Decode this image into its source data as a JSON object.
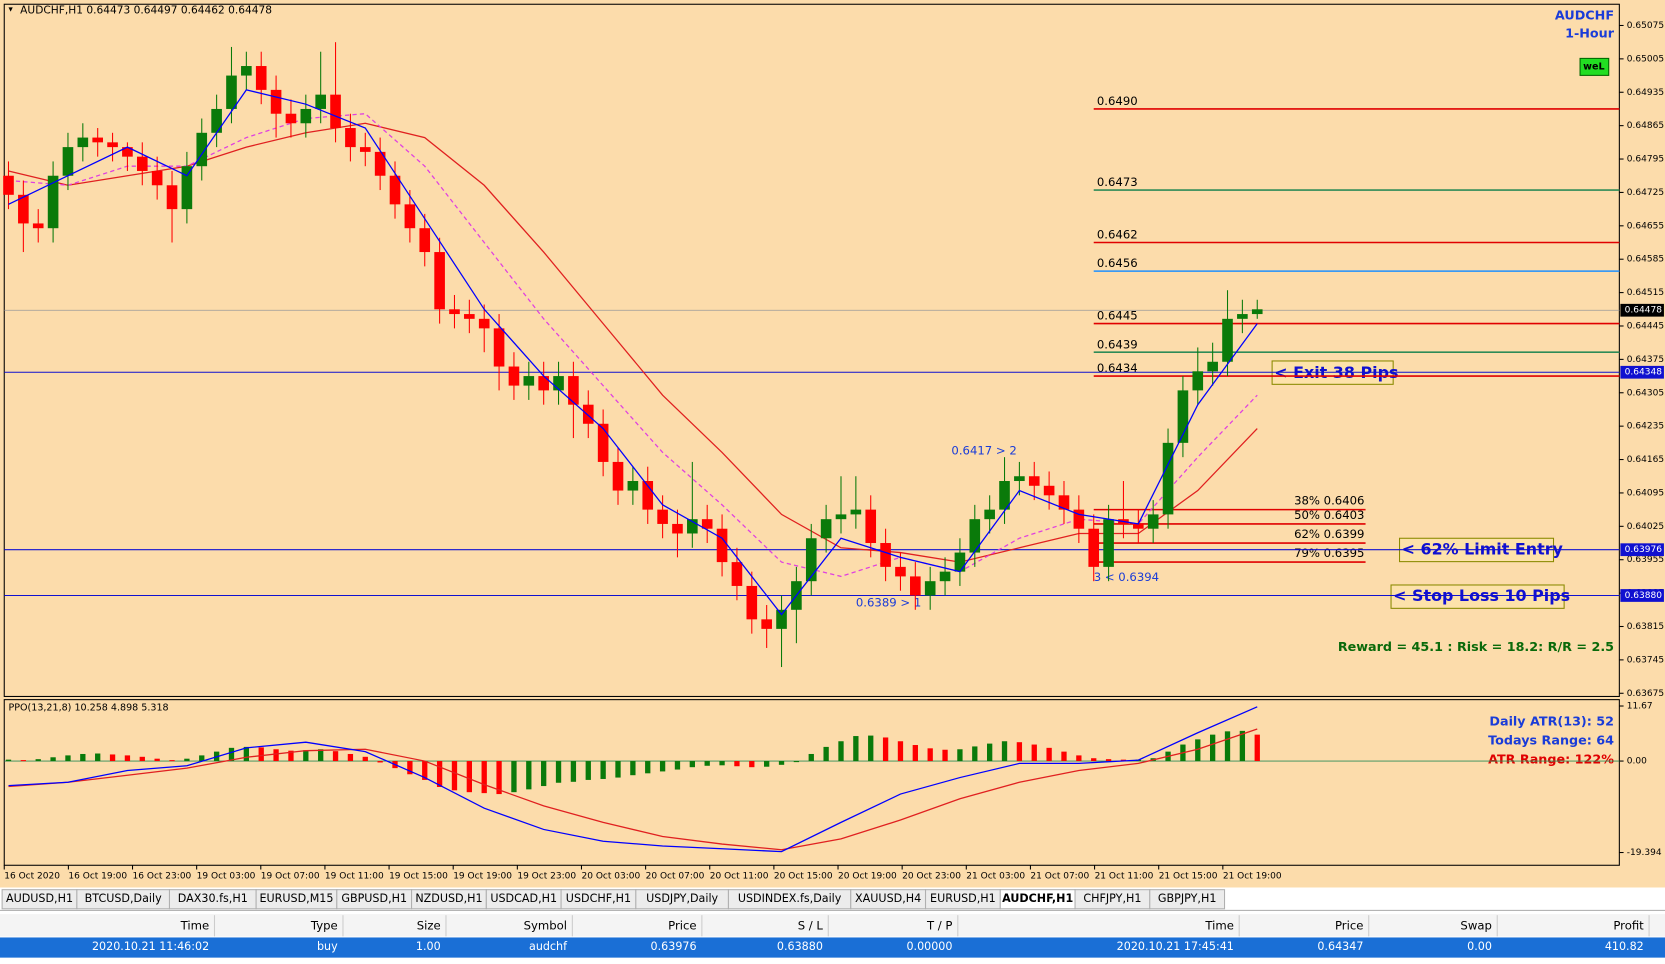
{
  "header": {
    "symbol_info": "AUDCHF,H1  0.64473 0.64497 0.64462 0.64478",
    "symbol": "AUDCHF",
    "timeframe": "1-Hour",
    "badge": "weL"
  },
  "price_chart": {
    "type": "candlestick",
    "bull_color": "#0a7a0a",
    "bear_color": "#ff0000",
    "background": "#fcdcab",
    "ylim": [
      0.63675,
      0.65075
    ],
    "yticks": [
      0.65075,
      0.65005,
      0.64935,
      0.64865,
      0.64795,
      0.64725,
      0.64655,
      0.64585,
      0.64515,
      0.64445,
      0.64375,
      0.64305,
      0.64235,
      0.64165,
      0.64095,
      0.64025,
      0.63955,
      0.63885,
      0.63815,
      0.63745,
      0.63675
    ],
    "candles": [
      [
        0.6476,
        0.6479,
        0.6469,
        0.6472
      ],
      [
        0.6472,
        0.6475,
        0.646,
        0.6466
      ],
      [
        0.6466,
        0.6469,
        0.6462,
        0.6465
      ],
      [
        0.6465,
        0.6479,
        0.6462,
        0.6476
      ],
      [
        0.6476,
        0.6485,
        0.6473,
        0.6482
      ],
      [
        0.6482,
        0.6487,
        0.6479,
        0.6484
      ],
      [
        0.6484,
        0.6486,
        0.648,
        0.6483
      ],
      [
        0.6483,
        0.6485,
        0.6479,
        0.6482
      ],
      [
        0.6482,
        0.6483,
        0.6477,
        0.648
      ],
      [
        0.648,
        0.6483,
        0.6474,
        0.6477
      ],
      [
        0.6477,
        0.648,
        0.6471,
        0.6474
      ],
      [
        0.6474,
        0.6477,
        0.6462,
        0.6469
      ],
      [
        0.6469,
        0.6481,
        0.6466,
        0.6478
      ],
      [
        0.6478,
        0.6488,
        0.6475,
        0.6485
      ],
      [
        0.6485,
        0.6493,
        0.6482,
        0.649
      ],
      [
        0.649,
        0.6503,
        0.6487,
        0.6497
      ],
      [
        0.6497,
        0.6502,
        0.6494,
        0.6499
      ],
      [
        0.6499,
        0.6502,
        0.6491,
        0.6494
      ],
      [
        0.6494,
        0.6497,
        0.6484,
        0.6489
      ],
      [
        0.6489,
        0.6492,
        0.6484,
        0.6487
      ],
      [
        0.6487,
        0.6493,
        0.6484,
        0.649
      ],
      [
        0.649,
        0.6502,
        0.6487,
        0.6493
      ],
      [
        0.6493,
        0.6504,
        0.6483,
        0.6486
      ],
      [
        0.6486,
        0.6489,
        0.6479,
        0.6482
      ],
      [
        0.6482,
        0.6485,
        0.6478,
        0.6481
      ],
      [
        0.6481,
        0.6484,
        0.6473,
        0.6476
      ],
      [
        0.6476,
        0.6479,
        0.6467,
        0.647
      ],
      [
        0.647,
        0.6473,
        0.6462,
        0.6465
      ],
      [
        0.6465,
        0.6468,
        0.6457,
        0.646
      ],
      [
        0.646,
        0.6463,
        0.6445,
        0.6448
      ],
      [
        0.6448,
        0.6451,
        0.6444,
        0.6447
      ],
      [
        0.6447,
        0.645,
        0.6443,
        0.6446
      ],
      [
        0.6446,
        0.6449,
        0.6439,
        0.6444
      ],
      [
        0.6444,
        0.6447,
        0.6431,
        0.6436
      ],
      [
        0.6436,
        0.6439,
        0.6429,
        0.6432
      ],
      [
        0.6432,
        0.6437,
        0.6429,
        0.6434
      ],
      [
        0.6434,
        0.6437,
        0.6428,
        0.6431
      ],
      [
        0.6431,
        0.6437,
        0.6428,
        0.6434
      ],
      [
        0.6434,
        0.6437,
        0.6421,
        0.6428
      ],
      [
        0.6428,
        0.6431,
        0.6421,
        0.6424
      ],
      [
        0.6424,
        0.6427,
        0.6413,
        0.6416
      ],
      [
        0.6416,
        0.6419,
        0.6407,
        0.641
      ],
      [
        0.641,
        0.6415,
        0.6407,
        0.6412
      ],
      [
        0.6412,
        0.6415,
        0.6403,
        0.6406
      ],
      [
        0.6406,
        0.6409,
        0.64,
        0.6403
      ],
      [
        0.6403,
        0.6406,
        0.6396,
        0.6401
      ],
      [
        0.6401,
        0.6416,
        0.6398,
        0.6404
      ],
      [
        0.6404,
        0.6407,
        0.6399,
        0.6402
      ],
      [
        0.6402,
        0.6405,
        0.6392,
        0.6395
      ],
      [
        0.6395,
        0.6398,
        0.6387,
        0.639
      ],
      [
        0.639,
        0.6393,
        0.638,
        0.6383
      ],
      [
        0.6383,
        0.6386,
        0.6377,
        0.6381
      ],
      [
        0.6381,
        0.6388,
        0.6373,
        0.6385
      ],
      [
        0.6385,
        0.6394,
        0.6378,
        0.6391
      ],
      [
        0.6391,
        0.6403,
        0.6388,
        0.64
      ],
      [
        0.64,
        0.6407,
        0.6397,
        0.6404
      ],
      [
        0.6404,
        0.6413,
        0.6401,
        0.6405
      ],
      [
        0.6405,
        0.6413,
        0.6402,
        0.6406
      ],
      [
        0.6406,
        0.6409,
        0.6396,
        0.6399
      ],
      [
        0.6399,
        0.6402,
        0.6391,
        0.6394
      ],
      [
        0.6394,
        0.6397,
        0.6389,
        0.6392
      ],
      [
        0.6392,
        0.6395,
        0.6385,
        0.6388
      ],
      [
        0.6388,
        0.6394,
        0.6385,
        0.6391
      ],
      [
        0.6391,
        0.6396,
        0.6388,
        0.6393
      ],
      [
        0.6393,
        0.64,
        0.639,
        0.6397
      ],
      [
        0.6397,
        0.6407,
        0.6394,
        0.6404
      ],
      [
        0.6404,
        0.6409,
        0.6401,
        0.6406
      ],
      [
        0.6406,
        0.6417,
        0.6403,
        0.6412
      ],
      [
        0.6412,
        0.6416,
        0.6409,
        0.6413
      ],
      [
        0.6413,
        0.6416,
        0.6408,
        0.6411
      ],
      [
        0.6411,
        0.6414,
        0.6406,
        0.6409
      ],
      [
        0.6409,
        0.6412,
        0.6403,
        0.6406
      ],
      [
        0.6406,
        0.6409,
        0.6399,
        0.6402
      ],
      [
        0.6402,
        0.6405,
        0.6391,
        0.6394
      ],
      [
        0.6394,
        0.6407,
        0.6391,
        0.6404
      ],
      [
        0.6404,
        0.6412,
        0.64,
        0.6403
      ],
      [
        0.6403,
        0.6406,
        0.6399,
        0.6402
      ],
      [
        0.6402,
        0.6408,
        0.6399,
        0.6405
      ],
      [
        0.6405,
        0.6423,
        0.6402,
        0.642
      ],
      [
        0.642,
        0.6434,
        0.6417,
        0.6431
      ],
      [
        0.6431,
        0.644,
        0.6428,
        0.6435
      ],
      [
        0.6435,
        0.6441,
        0.6432,
        0.6437
      ],
      [
        0.6437,
        0.6452,
        0.6434,
        0.6446
      ],
      [
        0.6446,
        0.645,
        0.6443,
        0.6447
      ],
      [
        0.6447,
        0.645,
        0.6446,
        0.6448
      ]
    ],
    "ma": {
      "x": [
        0,
        4,
        8,
        12,
        16,
        20,
        24,
        28,
        32,
        36,
        40,
        44,
        48,
        52,
        56,
        60,
        64,
        68,
        72,
        76,
        80,
        84
      ],
      "fast": {
        "color": "#0000ff",
        "values": [
          0.647,
          0.6476,
          0.6482,
          0.6476,
          0.6494,
          0.6491,
          0.6486,
          0.6467,
          0.6448,
          0.6434,
          0.6423,
          0.6407,
          0.64,
          0.6384,
          0.64,
          0.6396,
          0.6393,
          0.641,
          0.6405,
          0.6403,
          0.6428,
          0.6445
        ]
      },
      "mid": {
        "color": "#e040e0",
        "values": [
          0.6475,
          0.6474,
          0.6478,
          0.6478,
          0.6484,
          0.6488,
          0.6489,
          0.6478,
          0.6462,
          0.6446,
          0.6432,
          0.6418,
          0.6407,
          0.6395,
          0.6392,
          0.6396,
          0.6393,
          0.64,
          0.6404,
          0.6403,
          0.6417,
          0.643
        ]
      },
      "slow": {
        "color": "#e02020",
        "values": [
          0.6477,
          0.6474,
          0.6476,
          0.6478,
          0.6482,
          0.6485,
          0.6487,
          0.6484,
          0.6474,
          0.646,
          0.6445,
          0.643,
          0.6418,
          0.6405,
          0.6398,
          0.6397,
          0.6395,
          0.6398,
          0.6401,
          0.6401,
          0.641,
          0.6423
        ]
      }
    },
    "levels": [
      {
        "value": 0.649,
        "label": "0.6490",
        "color": "#e00000"
      },
      {
        "value": 0.6473,
        "label": "0.6473",
        "color": "#2e8b57"
      },
      {
        "value": 0.6462,
        "label": "0.6462",
        "color": "#e00000"
      },
      {
        "value": 0.6456,
        "label": "0.6456",
        "color": "#1e90ff"
      },
      {
        "value": 0.6445,
        "label": "0.6445",
        "color": "#e00000"
      },
      {
        "value": 0.6439,
        "label": "0.6439",
        "color": "#2e8b57"
      },
      {
        "value": 0.6434,
        "label": "0.6434",
        "color": "#e00000"
      }
    ],
    "fib_levels": [
      {
        "value": 0.6406,
        "label": "38% 0.6406"
      },
      {
        "value": 0.6403,
        "label": "50% 0.6403"
      },
      {
        "value": 0.6399,
        "label": "62% 0.6399"
      },
      {
        "value": 0.6395,
        "label": "79% 0.6395"
      }
    ],
    "current_price": 0.64478,
    "trade_lines": [
      0.64348,
      0.63976,
      {
        "value": 0.6388,
        "label": "0.63880"
      }
    ],
    "annotations": {
      "exit": "< Exit 38 Pips",
      "entry": "< 62% Limit Entry",
      "stop": "< Stop Loss 10 Pips",
      "reward": "Reward = 45.1 : Risk = 18.2: R/R = 2.5",
      "swing_high": "0.6417 > 2",
      "swing_low": "0.6389 > 1",
      "swing_3": "3 < 0.6394"
    }
  },
  "ppo_panel": {
    "type": "histogram",
    "title": "PPO(13,21,8) 10.258 4.898 5.318",
    "ylim": [
      -19.394,
      11.67
    ],
    "yticks": [
      11.67,
      {
        "value": 0,
        "label": "0.00"
      },
      -19.394
    ],
    "histogram": [
      0.3,
      0.2,
      0.4,
      0.8,
      1.2,
      1.5,
      1.6,
      1.4,
      1.2,
      0.9,
      0.5,
      0.2,
      0.5,
      1.2,
      2.0,
      2.8,
      3.0,
      2.9,
      2.5,
      2.2,
      2.3,
      2.5,
      2.1,
      1.5,
      0.9,
      -0.3,
      -1.5,
      -2.8,
      -4.0,
      -5.5,
      -6.2,
      -6.6,
      -6.8,
      -7.0,
      -6.6,
      -6.0,
      -5.3,
      -4.6,
      -4.4,
      -4.0,
      -3.8,
      -3.5,
      -3.0,
      -2.6,
      -2.2,
      -1.8,
      -1.3,
      -1.0,
      -0.9,
      -1.1,
      -1.3,
      -1.2,
      -0.8,
      -0.2,
      1.5,
      3.0,
      4.2,
      5.3,
      5.4,
      5.0,
      4.2,
      3.4,
      2.7,
      2.4,
      2.5,
      3.1,
      3.7,
      4.2,
      4.0,
      3.5,
      2.8,
      2.0,
      1.2,
      0.6,
      0.4,
      0.3,
      0.3,
      0.6,
      2.0,
      3.5,
      4.6,
      5.6,
      6.3,
      6.4,
      5.6
    ],
    "ppo_line": {
      "color": "#0000ff",
      "values": [
        -5.2,
        -4.5,
        -2.0,
        -1.0,
        2.8,
        4.0,
        2.0,
        -3.5,
        -10.0,
        -14.5,
        -17.0,
        -18.0,
        -18.6,
        -19.2,
        -13.0,
        -7.0,
        -3.5,
        -0.5,
        -0.5,
        0.2,
        6.0,
        11.5
      ]
    },
    "signal_line": {
      "color": "#e02020",
      "values": [
        -5.4,
        -4.5,
        -3.0,
        -1.5,
        0.8,
        2.2,
        2.5,
        0.0,
        -5.0,
        -9.5,
        -13.0,
        -16.0,
        -17.6,
        -18.8,
        -16.5,
        -12.5,
        -8.0,
        -4.5,
        -2.0,
        -0.5,
        2.5,
        6.8
      ]
    },
    "atr": {
      "daily": "Daily ATR(13): 52",
      "range": "Todays Range: 64",
      "ratio": "ATR Range: 122%"
    }
  },
  "time_axis": [
    "16 Oct 2020",
    "16 Oct 19:00",
    "16 Oct 23:00",
    "19 Oct 03:00",
    "19 Oct 07:00",
    "19 Oct 11:00",
    "19 Oct 15:00",
    "19 Oct 19:00",
    "19 Oct 23:00",
    "20 Oct 03:00",
    "20 Oct 07:00",
    "20 Oct 11:00",
    "20 Oct 15:00",
    "20 Oct 19:00",
    "20 Oct 23:00",
    "21 Oct 03:00",
    "21 Oct 07:00",
    "21 Oct 11:00",
    "21 Oct 15:00",
    "21 Oct 19:00"
  ],
  "tabs": {
    "items": [
      "AUDUSD,H1",
      "BTCUSD,Daily",
      "DAX30.fs,H1",
      "EURUSD,M15",
      "GBPUSD,H1",
      "NZDUSD,H1",
      "USDCAD,H1",
      "USDCHF,H1",
      "USDJPY,Daily",
      "USDINDEX.fs,Daily",
      "XAUUSD,H4",
      "EURUSD,H1",
      "AUDCHF,H1",
      "CHFJPY,H1",
      "GBPJPY,H1"
    ],
    "active": 12
  },
  "trades": {
    "columns": [
      "Time",
      "Type",
      "Size",
      "Symbol",
      "Price",
      "S / L",
      "T / P",
      "Time",
      "Price",
      "Swap",
      "Profit"
    ],
    "rows": [
      [
        "2020.10.21 11:46:02",
        "buy",
        "1.00",
        "audchf",
        "0.63976",
        "0.63880",
        "0.00000",
        "2020.10.21 17:45:41",
        "0.64347",
        "0.00",
        "410.82"
      ]
    ]
  }
}
